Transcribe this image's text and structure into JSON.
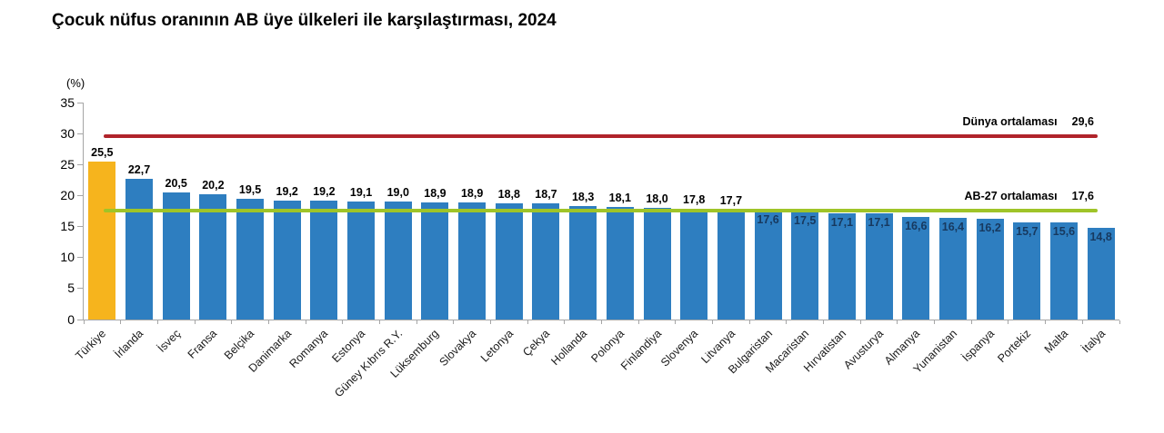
{
  "chart_data": {
    "type": "bar",
    "title": "Çocuk nüfus oranının AB üye ülkeleri ile karşılaştırması, 2024",
    "unit_label": "(%)",
    "ylim": [
      0,
      35
    ],
    "yticks": [
      0,
      5,
      10,
      15,
      20,
      25,
      30,
      35
    ],
    "grid": false,
    "legend_position": "inline-right",
    "categories": [
      "Türkiye",
      "İrlanda",
      "İsveç",
      "Fransa",
      "Belçika",
      "Danimarka",
      "Romanya",
      "Estonya",
      "Güney Kıbrıs R.Y.",
      "Lüksemburg",
      "Slovakya",
      "Letonya",
      "Çekya",
      "Hollanda",
      "Polonya",
      "Finlandiya",
      "Slovenya",
      "Litvanya",
      "Bulgaristan",
      "Macaristan",
      "Hırvatistan",
      "Avusturya",
      "Almanya",
      "Yunanistan",
      "İspanya",
      "Portekiz",
      "Malta",
      "İtalya"
    ],
    "values": [
      25.5,
      22.7,
      20.5,
      20.2,
      19.5,
      19.2,
      19.2,
      19.1,
      19.0,
      18.9,
      18.9,
      18.8,
      18.7,
      18.3,
      18.1,
      18.0,
      17.8,
      17.7,
      17.6,
      17.5,
      17.1,
      17.1,
      16.6,
      16.4,
      16.2,
      15.7,
      15.6,
      14.8
    ],
    "value_labels": [
      "25,5",
      "22,7",
      "20,5",
      "20,2",
      "19,5",
      "19,2",
      "19,2",
      "19,1",
      "19,0",
      "18,9",
      "18,9",
      "18,8",
      "18,7",
      "18,3",
      "18,1",
      "18,0",
      "17,8",
      "17,7",
      "17,6",
      "17,5",
      "17,1",
      "17,1",
      "16,6",
      "16,4",
      "16,2",
      "15,7",
      "15,6",
      "14,8"
    ],
    "highlight_index": 0,
    "value_label_inside_threshold": 17.6,
    "colors": {
      "bar_default": "#2E7EC0",
      "bar_highlight": "#F6B41D",
      "value_label_inside": "#17395F",
      "axis": "#A6A6A6"
    },
    "reference_lines": [
      {
        "name": "world-average",
        "label": "Dünya ortalaması",
        "value": 29.6,
        "value_label": "29,6",
        "color": "#B0232A"
      },
      {
        "name": "eu27-average",
        "label": "AB-27 ortalaması",
        "value": 17.6,
        "value_label": "17,6",
        "color": "#9FC428"
      }
    ]
  }
}
